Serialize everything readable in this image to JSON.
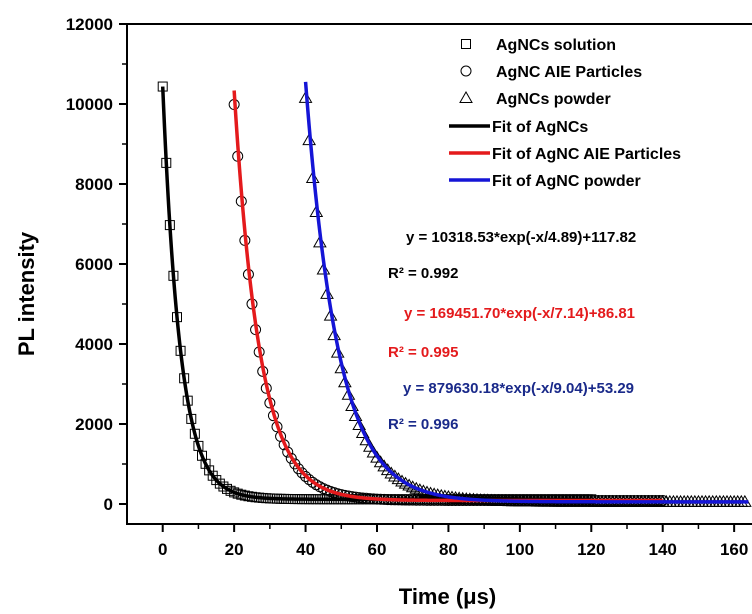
{
  "chart_data": {
    "type": "scatter",
    "xlabel": "Time (μs)",
    "ylabel": "PL intensity",
    "xlim": [
      -10,
      165
    ],
    "ylim": [
      -500,
      12000
    ],
    "xticks": [
      0,
      20,
      40,
      60,
      80,
      100,
      120,
      140,
      160
    ],
    "yticks": [
      0,
      2000,
      4000,
      6000,
      8000,
      10000,
      12000
    ],
    "grid": false,
    "legend_position": "top-right",
    "series": [
      {
        "name": "AgNCs solution",
        "kind": "markers",
        "marker": "square",
        "color": "#000000",
        "t0": 0,
        "x_end": 120,
        "step": 1,
        "params": {
          "amplitude": 10318.53,
          "tau": 4.89,
          "offset": 117.82
        }
      },
      {
        "name": "AgNC AIE Particles",
        "kind": "markers",
        "marker": "circle",
        "color": "#000000",
        "t0": 20,
        "x_end": 140,
        "step": 1,
        "params": {
          "amplitude": 9900,
          "tau": 7.14,
          "offset": 86.81
        }
      },
      {
        "name": "AgNCs powder",
        "kind": "markers",
        "marker": "triangle",
        "color": "#000000",
        "t0": 40,
        "x_end": 164,
        "step": 1,
        "params": {
          "amplitude": 10100,
          "tau": 9.04,
          "offset": 53.29
        }
      },
      {
        "name": "Fit of AgNCs",
        "kind": "line",
        "color": "#000000",
        "t0": 0,
        "x_end": 120,
        "params": {
          "amplitude": 10318.53,
          "tau": 4.89,
          "offset": 117.82
        }
      },
      {
        "name": "Fit of AgNC AIE Particles",
        "kind": "line",
        "color": "#e41a1c",
        "t0": 20,
        "x_end": 140,
        "params": {
          "amplitude": 10250,
          "tau": 7.14,
          "offset": 86.81
        }
      },
      {
        "name": "Fit of AgNC powder",
        "kind": "line",
        "color": "#1515d6",
        "t0": 40,
        "x_end": 164,
        "params": {
          "amplitude": 10500,
          "tau": 9.04,
          "offset": 53.29
        }
      }
    ],
    "annotations": [
      {
        "text": "y  = 10318.53*exp(-x/4.89)+117.82",
        "color": "#000000"
      },
      {
        "text": "R² = 0.992",
        "color": "#000000"
      },
      {
        "text": "y  = 169451.70*exp(-x/7.14)+86.81",
        "color": "#e41a1c"
      },
      {
        "text": "R² = 0.995",
        "color": "#e41a1c"
      },
      {
        "text": "y  = 879630.18*exp(-x/9.04)+53.29",
        "color": "#1a2a8a"
      },
      {
        "text": "R² = 0.996",
        "color": "#1a2a8a"
      }
    ]
  }
}
